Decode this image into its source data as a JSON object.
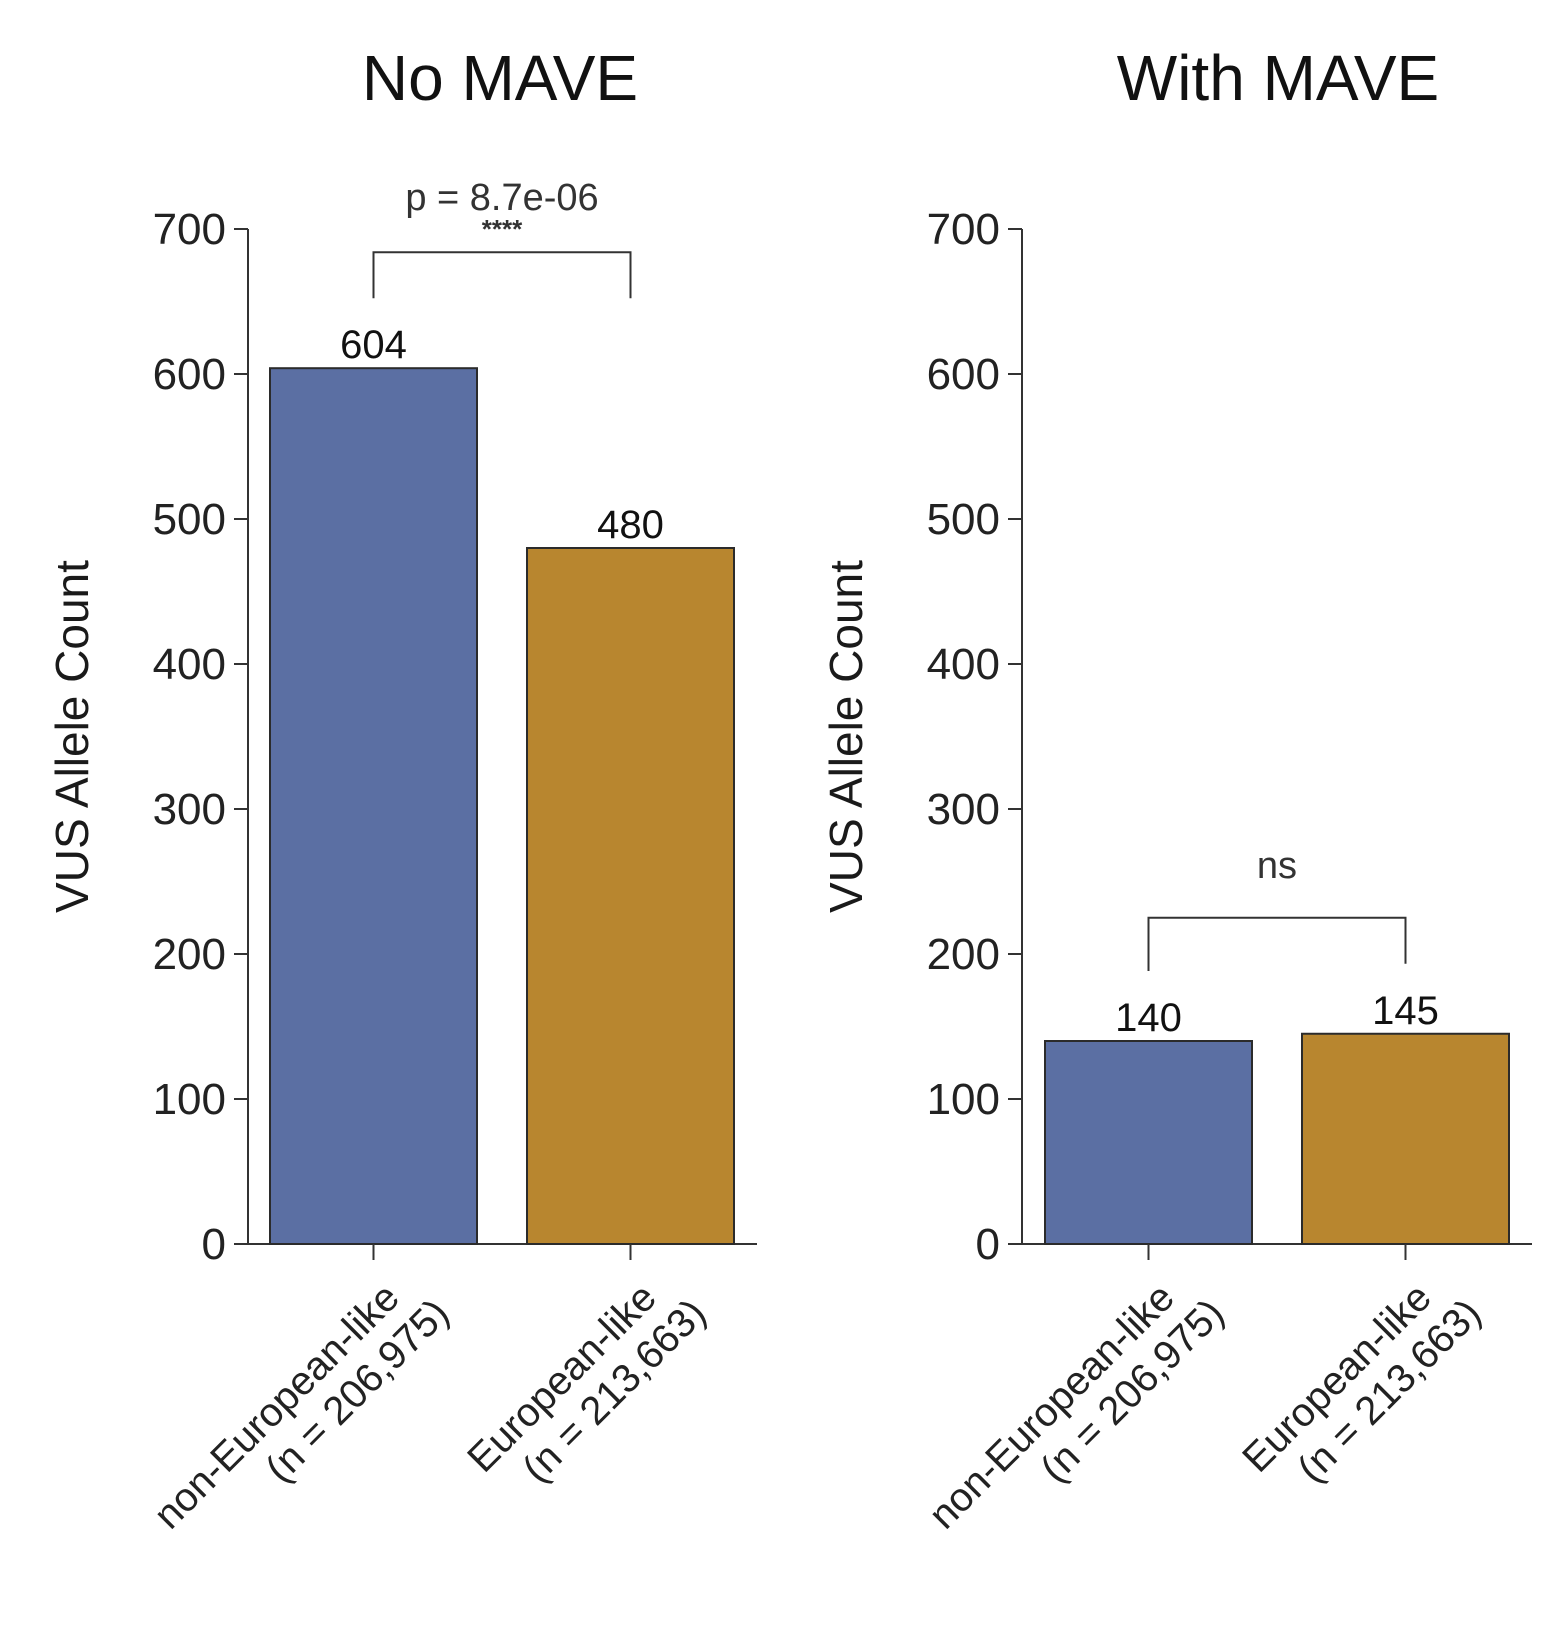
{
  "chart_data": [
    {
      "type": "bar",
      "title": "No MAVE",
      "ylabel": "VUS Allele Count",
      "xlabel": "",
      "ylim": [
        0,
        700
      ],
      "yticks": [
        0,
        100,
        200,
        300,
        400,
        500,
        600,
        700
      ],
      "categories": [
        {
          "label_line1": "non-European-like",
          "label_line2": "(n = 206,975)"
        },
        {
          "label_line1": "European-like",
          "label_line2": "(n = 213,663)"
        }
      ],
      "values": [
        604,
        480
      ],
      "value_labels": [
        "604",
        "480"
      ],
      "bar_colors": [
        "#5b6fa3",
        "#b8862f"
      ],
      "comparison": {
        "p_text": "p = 8.7e-06",
        "stars": "****"
      },
      "grid": false
    },
    {
      "type": "bar",
      "title": "With MAVE",
      "ylabel": "VUS Allele Count",
      "xlabel": "",
      "ylim": [
        0,
        700
      ],
      "yticks": [
        0,
        100,
        200,
        300,
        400,
        500,
        600,
        700
      ],
      "categories": [
        {
          "label_line1": "non-European-like",
          "label_line2": "(n = 206,975)"
        },
        {
          "label_line1": "European-like",
          "label_line2": "(n = 213,663)"
        }
      ],
      "values": [
        140,
        145
      ],
      "value_labels": [
        "140",
        "145"
      ],
      "bar_colors": [
        "#5b6fa3",
        "#b8862f"
      ],
      "comparison": {
        "p_text": "ns",
        "stars": ""
      },
      "grid": false
    }
  ]
}
